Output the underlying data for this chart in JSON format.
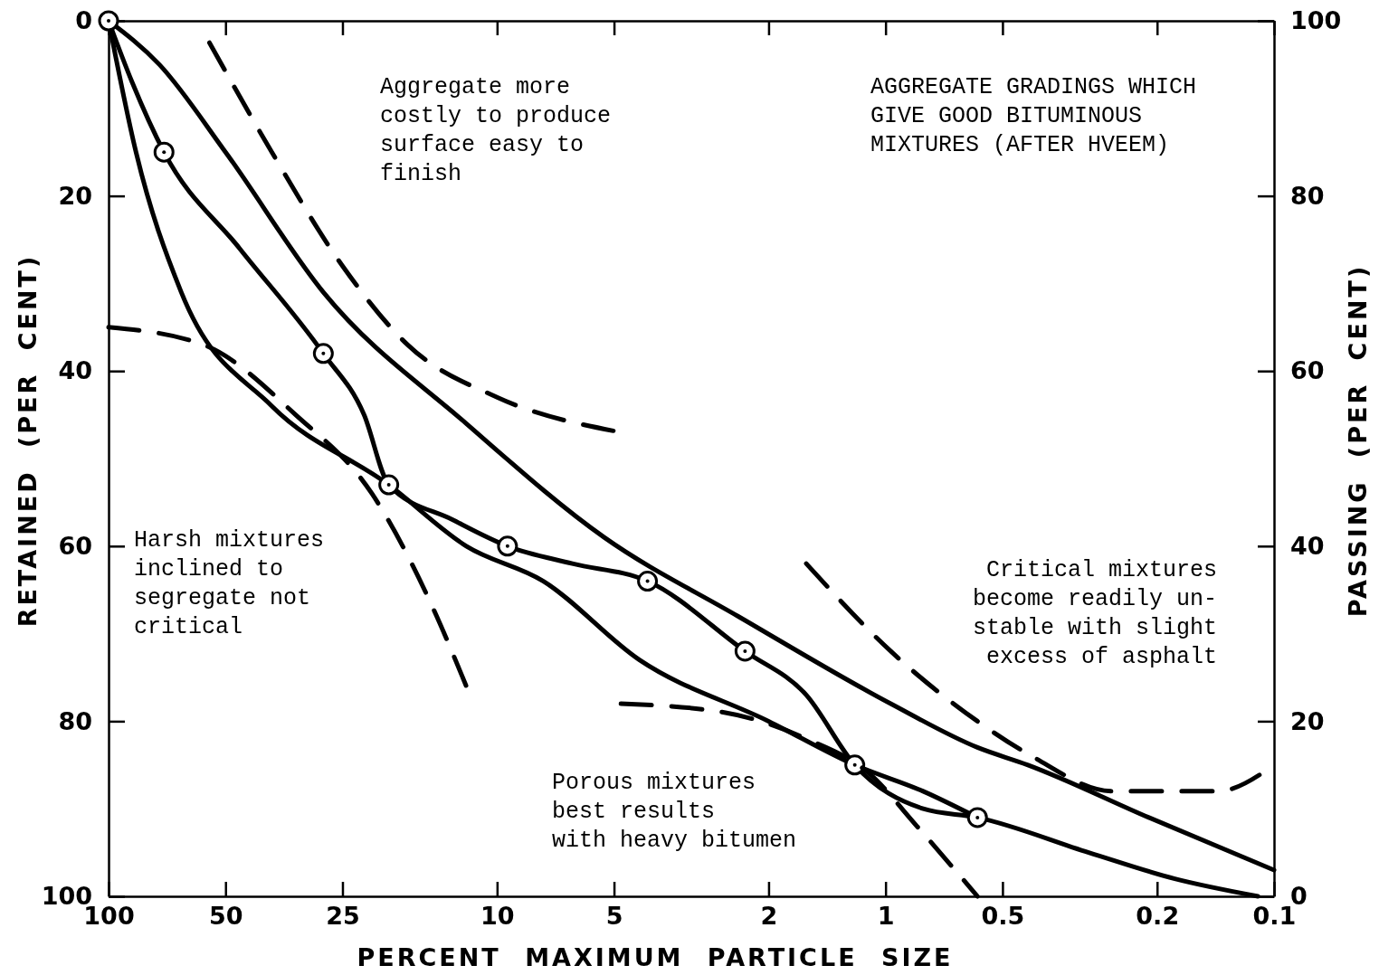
{
  "chart_data": {
    "type": "line",
    "title": "AGGREGATE GRADINGS WHICH\nGIVE GOOD BITUMINOUS\nMIXTURES (AFTER HVEEM)",
    "xlabel": "PERCENT MAXIMUM PARTICLE SIZE",
    "ylabel": "RETAINED (PER CENT)",
    "y2label": "PASSING (PER CENT)",
    "log": "x",
    "grid": false,
    "xlim": [
      100,
      0.1
    ],
    "xticks": [
      100,
      50,
      25,
      10,
      5,
      2,
      1,
      0.5,
      0.2,
      0.1
    ],
    "ylim": [
      100,
      0
    ],
    "yticks": [
      0,
      20,
      40,
      60,
      80,
      100
    ],
    "y2lim": [
      0,
      100
    ],
    "y2ticks": [
      0,
      20,
      40,
      60,
      80,
      100
    ],
    "series": [
      {
        "color": "#000000",
        "line_style": "solid",
        "x": [
          100,
          74,
          50,
          28,
          12,
          5.3,
          2.4,
          0.97,
          0.58,
          0.43,
          0.21,
          0.1
        ],
        "values": [
          0,
          5,
          15,
          31,
          46,
          59,
          68,
          78,
          83,
          85,
          91,
          97
        ]
      },
      {
        "color": "#000000",
        "line_style": "solid",
        "x": [
          100,
          87,
          72,
          46,
          28,
          22,
          19,
          13,
          9.4,
          6.4,
          4.1,
          2.3,
          1.6,
          1.2,
          0.8,
          0.58,
          0.3,
          0.18,
          0.11
        ],
        "values": [
          0,
          7,
          15,
          26,
          38,
          45,
          53,
          57,
          60,
          62,
          64,
          72,
          77,
          85,
          90,
          91,
          95,
          98,
          100
        ]
      },
      {
        "color": "#000000",
        "line_style": "solid",
        "x": [
          100,
          85,
          65,
          38,
          19,
          12,
          7.6,
          4.3,
          2,
          1.2,
          0.8,
          0.58
        ],
        "values": [
          0,
          15,
          31,
          44,
          53,
          60,
          64,
          73,
          80,
          85,
          88,
          91
        ]
      },
      {
        "type": "scatter",
        "color": "#000000",
        "marker": "circle",
        "x": [
          100,
          72,
          28,
          19,
          9.4,
          4.1,
          2.3,
          1.2,
          0.58
        ],
        "values": [
          0,
          15,
          38,
          53,
          60,
          64,
          72,
          85,
          91
        ]
      },
      {
        "color": "#000000",
        "line_style": "dashed",
        "x": [
          55,
          38,
          25,
          17,
          10,
          4.8
        ],
        "values": [
          2.5,
          15,
          28,
          37,
          43,
          47
        ]
      },
      {
        "color": "#000000",
        "line_style": "dashed",
        "x": [
          100,
          57,
          33,
          21,
          15,
          12
        ],
        "values": [
          35,
          37,
          45,
          54,
          66,
          76
        ]
      },
      {
        "color": "#000000",
        "line_style": "dashed",
        "x": [
          4.8,
          2.6,
          1.6,
          1.1,
          0.83,
          0.58
        ],
        "values": [
          78,
          79,
          82,
          86,
          92,
          100
        ]
      },
      {
        "color": "#000000",
        "line_style": "dashed",
        "x": [
          1.6,
          0.97,
          0.58,
          0.42,
          0.26,
          0.19,
          0.14,
          0.1
        ],
        "values": [
          62,
          72,
          80,
          84,
          88,
          88,
          88,
          85
        ]
      }
    ],
    "annotations": [
      "Aggregate more\ncostly to produce\nsurface easy to\nfinish",
      "Harsh mixtures\ninclined to\nsegregate not\ncritical",
      "Critical mixtures\nbecome readily un-\nstable with slight\nexcess of asphalt",
      "Porous mixtures\nbest results\nwith heavy bitumen"
    ]
  }
}
